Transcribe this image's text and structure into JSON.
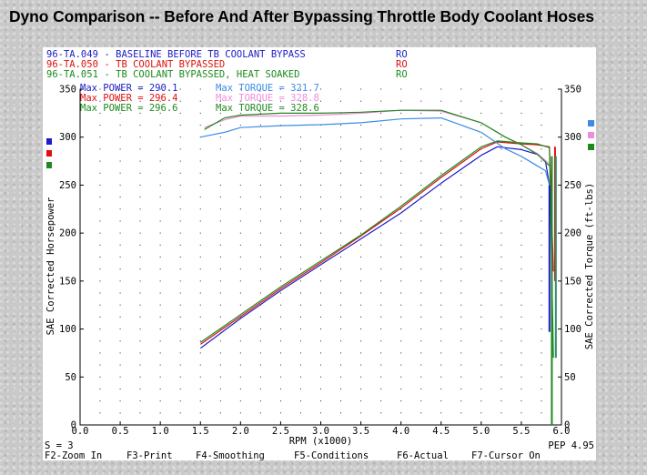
{
  "page_title": "Dyno Comparison -- Before And After Bypassing Throttle Body Coolant Hoses",
  "runs": [
    {
      "id": "96-TA.049",
      "desc": "BASELINE BEFORE TB COOLANT BYPASS",
      "flag": "RO",
      "color": "#1c1cc8"
    },
    {
      "id": "96-TA.050",
      "desc": "TB COOLANT BYPASSED",
      "flag": "RO",
      "color": "#e01010"
    },
    {
      "id": "96-TA.051",
      "desc": "TB COOLANT BYPASSED, HEAT SOAKED",
      "flag": "RO",
      "color": "#1e8a1e"
    }
  ],
  "maxima": [
    {
      "power_label": "Max POWER",
      "power_value": "290.1",
      "torque_label": "Max TORQUE",
      "torque_value": "321.7",
      "power_color": "#1c1cc8",
      "torque_color": "#3c8ce6"
    },
    {
      "power_label": "Max POWER",
      "power_value": "296.4",
      "torque_label": "Max TORQUE",
      "torque_value": "328.8",
      "power_color": "#e01010",
      "torque_color": "#f08cdc"
    },
    {
      "power_label": "Max POWER",
      "power_value": "296.6",
      "torque_label": "Max TORQUE",
      "torque_value": "328.6",
      "power_color": "#1e8a1e",
      "torque_color": "#1e8a1e"
    }
  ],
  "footer": {
    "smoothing": "S = 3",
    "pep": "PEP 4.95",
    "keys": [
      "F2-Zoom In",
      "F3-Print",
      "F4-Smoothing",
      "F5-Conditions",
      "F6-Actual",
      "F7-Cursor On"
    ]
  },
  "chart_data": {
    "type": "line",
    "xlabel": "RPM (x1000)",
    "ylabel": "SAE Corrected Horsepower",
    "y2label": "SAE Corrected Torque (ft-lbs)",
    "x_tick_labels": [
      "0.0",
      "0.5",
      "1.0",
      "1.5",
      "2.0",
      "2.5",
      "3.0",
      "3.5",
      "4.0",
      "4.5",
      "5.0",
      "5.5",
      "6.0"
    ],
    "y_tick_labels": [
      "0",
      "50",
      "100",
      "150",
      "200",
      "250",
      "300",
      "350"
    ],
    "xlim": [
      0,
      6.0
    ],
    "ylim": [
      0,
      350
    ],
    "y2lim": [
      0,
      350
    ],
    "grid": "dotted",
    "series": [
      {
        "name": "96-TA.049 power",
        "axis": "left",
        "color": "#1c1cc8",
        "x": [
          1.5,
          2.0,
          2.5,
          3.0,
          3.5,
          4.0,
          4.5,
          5.0,
          5.2,
          5.5,
          5.7,
          5.8,
          5.85
        ],
        "y": [
          80,
          111,
          140,
          167,
          194,
          221,
          252,
          281,
          290,
          287,
          282,
          275,
          250
        ]
      },
      {
        "name": "96-TA.050 power",
        "axis": "left",
        "color": "#e01010",
        "x": [
          1.5,
          2.0,
          2.5,
          3.0,
          3.5,
          4.0,
          4.5,
          5.0,
          5.2,
          5.5,
          5.7,
          5.85,
          5.9
        ],
        "y": [
          84,
          113,
          142,
          169,
          197,
          226,
          258,
          288,
          295,
          293,
          292,
          290,
          160
        ]
      },
      {
        "name": "96-TA.051 power",
        "axis": "left",
        "color": "#1e8a1e",
        "x": [
          1.5,
          2.0,
          2.5,
          3.0,
          3.5,
          4.0,
          4.5,
          5.0,
          5.2,
          5.5,
          5.7,
          5.85,
          5.9
        ],
        "y": [
          86,
          115,
          144,
          171,
          198,
          228,
          260,
          290,
          296,
          294,
          293,
          289,
          70
        ]
      },
      {
        "name": "96-TA.049 torque",
        "axis": "right",
        "color": "#3c8ce6",
        "x": [
          1.5,
          1.8,
          2.0,
          2.5,
          3.0,
          3.5,
          4.0,
          4.5,
          5.0,
          5.3,
          5.5,
          5.7,
          5.8,
          5.85
        ],
        "y": [
          300,
          305,
          310,
          312,
          313,
          315,
          319,
          320,
          305,
          288,
          280,
          270,
          265,
          250
        ]
      },
      {
        "name": "96-TA.050 torque",
        "axis": "right",
        "color": "#f08cdc",
        "x": [
          1.55,
          1.8,
          2.0,
          2.5,
          3.0,
          3.5,
          4.0,
          4.5,
          5.0,
          5.3,
          5.5,
          5.7,
          5.85
        ],
        "y": [
          310,
          318,
          322,
          322,
          323,
          325,
          328,
          327,
          315,
          300,
          292,
          283,
          272
        ]
      },
      {
        "name": "96-TA.051 torque",
        "axis": "right",
        "color": "#1e8a1e",
        "x": [
          1.55,
          1.8,
          2.0,
          2.5,
          3.0,
          3.5,
          4.0,
          4.5,
          5.0,
          5.3,
          5.5,
          5.7,
          5.85
        ],
        "y": [
          308,
          320,
          323,
          325,
          325,
          326,
          328,
          328,
          315,
          300,
          292,
          282,
          270
        ]
      }
    ],
    "drop_lines": [
      {
        "color": "#1c1cc8",
        "x": 5.85,
        "y_from": 250,
        "y_to": 97
      },
      {
        "color": "#e01010",
        "x": 5.92,
        "y_from": 290,
        "y_to": 150
      },
      {
        "color": "#1e8a1e",
        "x": 5.88,
        "y_from": 280,
        "y_to": 0
      },
      {
        "color": "#2d8c6a",
        "x": 5.93,
        "y_from": 280,
        "y_to": 70
      }
    ],
    "axis_markers_left": [
      "#1c1cc8",
      "#e01010",
      "#1e8a1e"
    ],
    "axis_markers_right": [
      "#3c8ce6",
      "#f08cdc",
      "#1e8a1e"
    ]
  }
}
